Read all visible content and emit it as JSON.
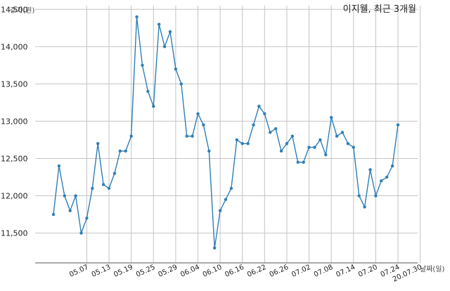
{
  "chart_data": {
    "type": "line",
    "title": "이지웰, 최근 3개월",
    "ylabel": "주가(원)",
    "xlabel": "날짜(일)",
    "ylim": [
      11100,
      14550
    ],
    "yticks": [
      11500,
      12000,
      12500,
      13000,
      13500,
      14000,
      14500
    ],
    "ytick_labels": [
      "11,500",
      "12,000",
      "12,500",
      "13,000",
      "13,500",
      "14,000",
      "14,500"
    ],
    "grid": true,
    "line_color": "#2e7fb5",
    "xtick_labels": [
      "05.07",
      "05.13",
      "05.19",
      "05.25",
      "05.29",
      "06.04",
      "06.10",
      "06.16",
      "06.22",
      "06.26",
      "07.02",
      "07.08",
      "07.14",
      "07.20",
      "07.24",
      "20.07.30"
    ],
    "xtick_index": [
      6,
      10,
      14,
      18,
      22,
      26,
      30,
      34,
      38,
      42,
      46,
      50,
      54,
      58,
      62,
      66
    ],
    "series": [
      {
        "values": [
          11750,
          12400,
          12000,
          11800,
          12000,
          11500,
          11700,
          12100,
          12700,
          12150,
          12100,
          12300,
          12600,
          12600,
          12800,
          14400,
          13750,
          13400,
          13200,
          14300,
          14000,
          14200,
          13700,
          13500,
          12800,
          12800,
          13100,
          12950,
          12600,
          11300,
          11800,
          11950,
          12100,
          12750,
          12700,
          12700,
          12950,
          13200,
          13100,
          12850,
          12900,
          12600,
          12700,
          12800,
          12450,
          12450,
          12650,
          12650,
          12750,
          12550,
          13050,
          12800,
          12850,
          12700,
          12650,
          12000,
          11850,
          12350,
          12000,
          12200,
          12250,
          12400,
          12950
        ]
      }
    ]
  }
}
